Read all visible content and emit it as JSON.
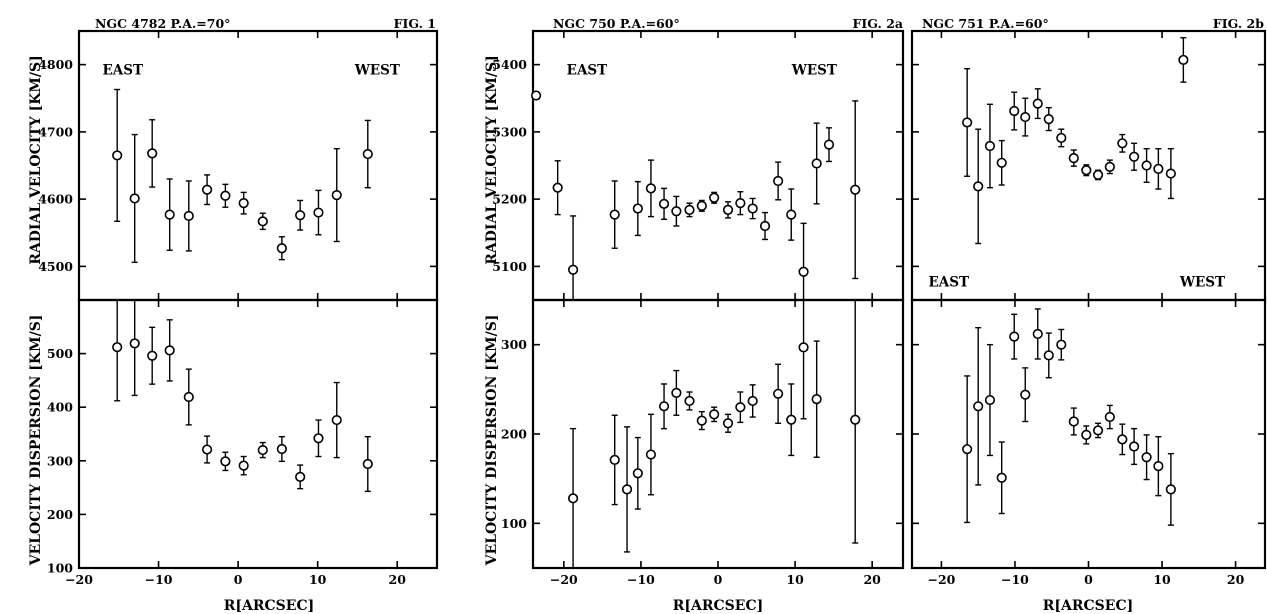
{
  "figures": {
    "fig1": {
      "header": "NGC 4782 P.A.=70°",
      "label": "FIG. 1"
    },
    "fig2a": {
      "header": "NGC 750 P.A.=60°",
      "label": "FIG. 2a"
    },
    "fig2b": {
      "header": "NGC 751 P.A.=60°",
      "label": "FIG. 2b"
    }
  },
  "axis_labels": {
    "x": "R[ARCSEC]",
    "y_top": "RADIAL VELOCITY [KM/S]",
    "y_bottom": "VELOCITY DISPERSION [KM/S]"
  },
  "annotations": {
    "east": "EAST",
    "west": "WEST"
  },
  "chart_data": [
    {
      "type": "scatter",
      "panel": "fig1-radial-velocity",
      "title": "NGC 4782 P.A.=70°",
      "xlabel": "R[ARCSEC]",
      "ylabel": "RADIAL VELOCITY [KM/S]",
      "xlim": [
        -20,
        25
      ],
      "ylim": [
        4450,
        4850
      ],
      "x_ticks": [
        -20,
        -10,
        0,
        10,
        20
      ],
      "y_ticks": [
        4500,
        4600,
        4700,
        4800
      ],
      "x_tick_labels": false,
      "annotations": [
        {
          "text": "EAST",
          "x": -14.5,
          "y": 4785
        },
        {
          "text": "WEST",
          "x": 17.5,
          "y": 4785
        }
      ],
      "points": [
        {
          "x": -15.2,
          "y": 4665,
          "err": 98
        },
        {
          "x": -13.0,
          "y": 4601,
          "err": 95
        },
        {
          "x": -10.8,
          "y": 4668,
          "err": 50
        },
        {
          "x": -8.6,
          "y": 4577,
          "err": 53
        },
        {
          "x": -6.2,
          "y": 4575,
          "err": 52
        },
        {
          "x": -3.9,
          "y": 4614,
          "err": 22
        },
        {
          "x": -1.6,
          "y": 4605,
          "err": 17
        },
        {
          "x": 0.7,
          "y": 4594,
          "err": 16
        },
        {
          "x": 3.1,
          "y": 4567,
          "err": 12
        },
        {
          "x": 5.5,
          "y": 4527,
          "err": 17
        },
        {
          "x": 7.8,
          "y": 4576,
          "err": 22
        },
        {
          "x": 10.1,
          "y": 4580,
          "err": 33
        },
        {
          "x": 12.4,
          "y": 4606,
          "err": 69
        },
        {
          "x": 16.3,
          "y": 4667,
          "err": 50
        }
      ]
    },
    {
      "type": "scatter",
      "panel": "fig1-velocity-dispersion",
      "xlabel": "R[ARCSEC]",
      "ylabel": "VELOCITY DISPERSION [KM/S]",
      "xlim": [
        -20,
        25
      ],
      "ylim": [
        100,
        600
      ],
      "x_ticks": [
        -20,
        -10,
        0,
        10,
        20
      ],
      "y_ticks": [
        100,
        200,
        300,
        400,
        500
      ],
      "x_tick_labels": true,
      "points": [
        {
          "x": -15.2,
          "y": 512,
          "err": 100
        },
        {
          "x": -13.0,
          "y": 519,
          "err": 97
        },
        {
          "x": -10.8,
          "y": 496,
          "err": 53
        },
        {
          "x": -8.6,
          "y": 506,
          "err": 57
        },
        {
          "x": -6.2,
          "y": 419,
          "err": 52
        },
        {
          "x": -3.9,
          "y": 321,
          "err": 25
        },
        {
          "x": -1.6,
          "y": 299,
          "err": 17
        },
        {
          "x": 0.7,
          "y": 291,
          "err": 17
        },
        {
          "x": 3.1,
          "y": 320,
          "err": 14
        },
        {
          "x": 5.5,
          "y": 322,
          "err": 23
        },
        {
          "x": 7.8,
          "y": 270,
          "err": 22
        },
        {
          "x": 10.1,
          "y": 342,
          "err": 34
        },
        {
          "x": 12.4,
          "y": 376,
          "err": 70
        },
        {
          "x": 16.3,
          "y": 294,
          "err": 51
        }
      ]
    },
    {
      "type": "scatter",
      "panel": "fig2a-radial-velocity",
      "title": "NGC 750 P.A.=60°",
      "xlabel": "R[ARCSEC]",
      "ylabel": "RADIAL VELOCITY [KM/S]",
      "xlim": [
        -24,
        24
      ],
      "ylim": [
        5050,
        5450
      ],
      "x_ticks": [
        -20,
        -10,
        0,
        10,
        20
      ],
      "y_ticks": [
        5100,
        5200,
        5300,
        5400
      ],
      "x_tick_labels": false,
      "annotations": [
        {
          "text": "EAST",
          "x": -17.0,
          "y": 5385
        },
        {
          "text": "WEST",
          "x": 12.5,
          "y": 5385
        }
      ],
      "points": [
        {
          "x": -23.6,
          "y": 5354,
          "err": 0
        },
        {
          "x": -20.8,
          "y": 5217,
          "err": 40
        },
        {
          "x": -18.8,
          "y": 5095,
          "err": 80
        },
        {
          "x": -13.4,
          "y": 5177,
          "err": 50
        },
        {
          "x": -10.4,
          "y": 5186,
          "err": 40
        },
        {
          "x": -8.7,
          "y": 5216,
          "err": 42
        },
        {
          "x": -7.0,
          "y": 5193,
          "err": 23
        },
        {
          "x": -5.4,
          "y": 5182,
          "err": 22
        },
        {
          "x": -3.7,
          "y": 5184,
          "err": 10
        },
        {
          "x": -2.1,
          "y": 5190,
          "err": 8
        },
        {
          "x": -0.5,
          "y": 5202,
          "err": 8
        },
        {
          "x": 1.3,
          "y": 5184,
          "err": 12
        },
        {
          "x": 2.9,
          "y": 5194,
          "err": 17
        },
        {
          "x": 4.5,
          "y": 5186,
          "err": 15
        },
        {
          "x": 6.1,
          "y": 5160,
          "err": 20
        },
        {
          "x": 7.8,
          "y": 5227,
          "err": 28
        },
        {
          "x": 9.5,
          "y": 5177,
          "err": 38
        },
        {
          "x": 11.1,
          "y": 5092,
          "err": 72
        },
        {
          "x": 12.8,
          "y": 5253,
          "err": 60
        },
        {
          "x": 14.4,
          "y": 5281,
          "err": 25
        },
        {
          "x": 17.8,
          "y": 5214,
          "err": 132
        }
      ]
    },
    {
      "type": "scatter",
      "panel": "fig2a-velocity-dispersion",
      "xlabel": "R[ARCSEC]",
      "ylabel": "VELOCITY DISPERSION [KM/S]",
      "xlim": [
        -24,
        24
      ],
      "ylim": [
        50,
        350
      ],
      "x_ticks": [
        -20,
        -10,
        0,
        10,
        20
      ],
      "y_ticks": [
        100,
        200,
        300
      ],
      "x_tick_labels": true,
      "points": [
        {
          "x": -18.8,
          "y": 128,
          "err": 78
        },
        {
          "x": -13.4,
          "y": 171,
          "err": 50
        },
        {
          "x": -11.8,
          "y": 138,
          "err": 70
        },
        {
          "x": -10.4,
          "y": 156,
          "err": 40
        },
        {
          "x": -8.7,
          "y": 177,
          "err": 45
        },
        {
          "x": -7.0,
          "y": 231,
          "err": 25
        },
        {
          "x": -5.4,
          "y": 246,
          "err": 25
        },
        {
          "x": -3.7,
          "y": 237,
          "err": 10
        },
        {
          "x": -2.1,
          "y": 215,
          "err": 10
        },
        {
          "x": -0.5,
          "y": 222,
          "err": 8
        },
        {
          "x": 1.3,
          "y": 212,
          "err": 10
        },
        {
          "x": 2.9,
          "y": 230,
          "err": 17
        },
        {
          "x": 4.5,
          "y": 237,
          "err": 18
        },
        {
          "x": 7.8,
          "y": 245,
          "err": 33
        },
        {
          "x": 9.5,
          "y": 216,
          "err": 40
        },
        {
          "x": 11.1,
          "y": 297,
          "err": 80
        },
        {
          "x": 12.8,
          "y": 239,
          "err": 65
        },
        {
          "x": 17.8,
          "y": 216,
          "err": 138
        }
      ]
    },
    {
      "type": "scatter",
      "panel": "fig2b-radial-velocity",
      "title": "NGC 751 P.A.=60°",
      "xlabel": "R[ARCSEC]",
      "ylabel": "RADIAL VELOCITY [KM/S]",
      "xlim": [
        -24,
        24
      ],
      "ylim": [
        5050,
        5450
      ],
      "x_ticks": [
        -20,
        -10,
        0,
        10,
        20
      ],
      "y_ticks": [
        5100,
        5200,
        5300,
        5400
      ],
      "x_tick_labels": false,
      "annotations": [
        {
          "text": "EAST",
          "x": -19.0,
          "y": 5070
        },
        {
          "text": "WEST",
          "x": 15.5,
          "y": 5070
        }
      ],
      "points": [
        {
          "x": -16.5,
          "y": 5314,
          "err": 80
        },
        {
          "x": -15.0,
          "y": 5219,
          "err": 85
        },
        {
          "x": -13.4,
          "y": 5279,
          "err": 62
        },
        {
          "x": -11.8,
          "y": 5254,
          "err": 33
        },
        {
          "x": -10.1,
          "y": 5331,
          "err": 28
        },
        {
          "x": -8.6,
          "y": 5322,
          "err": 28
        },
        {
          "x": -6.9,
          "y": 5342,
          "err": 22
        },
        {
          "x": -5.4,
          "y": 5319,
          "err": 17
        },
        {
          "x": -3.7,
          "y": 5291,
          "err": 13
        },
        {
          "x": -2.0,
          "y": 5261,
          "err": 12
        },
        {
          "x": -0.3,
          "y": 5243,
          "err": 8
        },
        {
          "x": 1.3,
          "y": 5236,
          "err": 7
        },
        {
          "x": 2.9,
          "y": 5248,
          "err": 10
        },
        {
          "x": 4.6,
          "y": 5283,
          "err": 13
        },
        {
          "x": 6.2,
          "y": 5263,
          "err": 20
        },
        {
          "x": 7.9,
          "y": 5250,
          "err": 25
        },
        {
          "x": 9.5,
          "y": 5245,
          "err": 30
        },
        {
          "x": 11.2,
          "y": 5238,
          "err": 37
        },
        {
          "x": 12.9,
          "y": 5407,
          "err": 33
        }
      ]
    },
    {
      "type": "scatter",
      "panel": "fig2b-velocity-dispersion",
      "xlabel": "R[ARCSEC]",
      "ylabel": "VELOCITY DISPERSION [KM/S]",
      "xlim": [
        -24,
        24
      ],
      "ylim": [
        50,
        350
      ],
      "x_ticks": [
        -20,
        -10,
        0,
        10,
        20
      ],
      "y_ticks": [
        100,
        200,
        300
      ],
      "x_tick_labels": true,
      "points": [
        {
          "x": -16.5,
          "y": 183,
          "err": 82
        },
        {
          "x": -15.0,
          "y": 231,
          "err": 88
        },
        {
          "x": -13.4,
          "y": 238,
          "err": 62
        },
        {
          "x": -11.8,
          "y": 151,
          "err": 40
        },
        {
          "x": -10.1,
          "y": 309,
          "err": 25
        },
        {
          "x": -8.6,
          "y": 244,
          "err": 30
        },
        {
          "x": -6.9,
          "y": 312,
          "err": 28
        },
        {
          "x": -5.4,
          "y": 288,
          "err": 25
        },
        {
          "x": -3.7,
          "y": 300,
          "err": 17
        },
        {
          "x": -2.0,
          "y": 214,
          "err": 15
        },
        {
          "x": -0.3,
          "y": 199,
          "err": 10
        },
        {
          "x": 1.3,
          "y": 204,
          "err": 8
        },
        {
          "x": 2.9,
          "y": 219,
          "err": 13
        },
        {
          "x": 4.6,
          "y": 194,
          "err": 17
        },
        {
          "x": 6.2,
          "y": 186,
          "err": 20
        },
        {
          "x": 7.9,
          "y": 174,
          "err": 25
        },
        {
          "x": 9.5,
          "y": 164,
          "err": 33
        },
        {
          "x": 11.2,
          "y": 138,
          "err": 40
        }
      ]
    }
  ]
}
